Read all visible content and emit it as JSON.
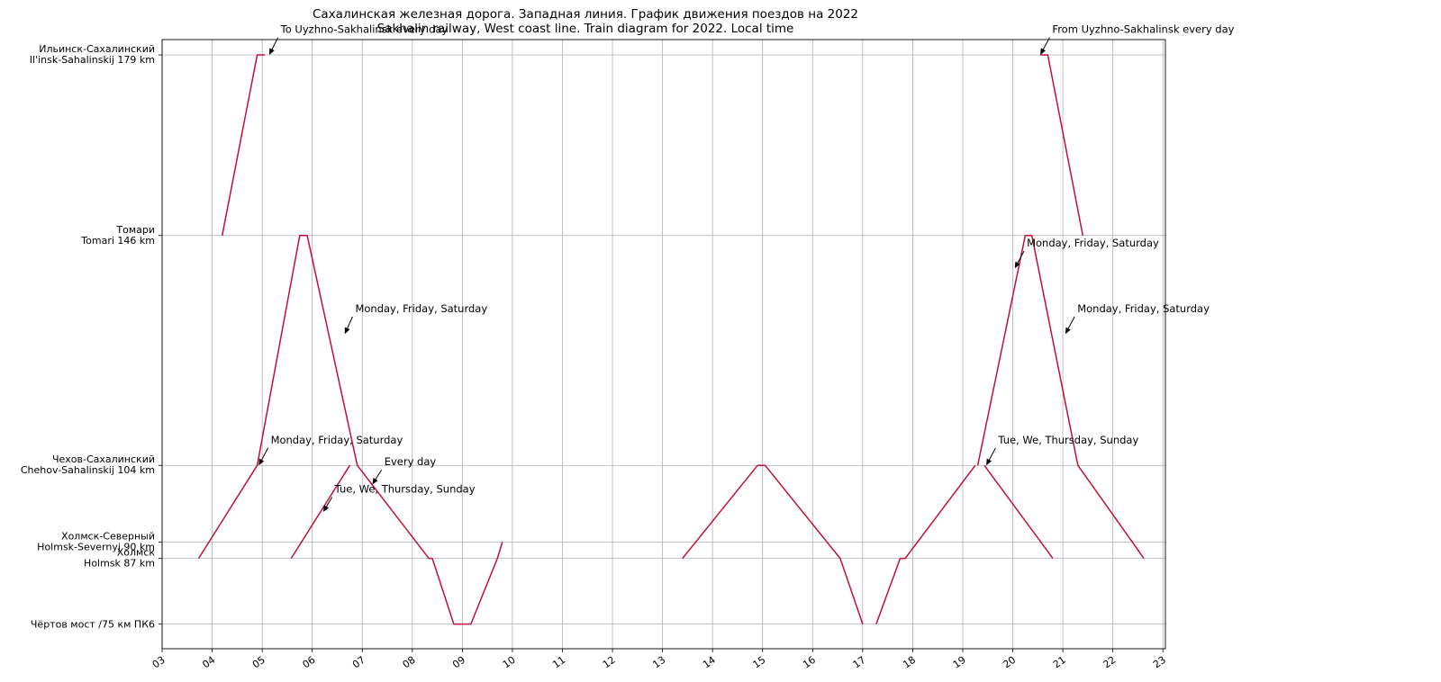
{
  "chart_data": {
    "type": "line",
    "title": "Сахалинская железная дорога. Западная линия. График движения поездов на 2022",
    "subtitle": "Sakhalin railway, West coast line. Train diagram for 2022. Local time",
    "xlabel": "",
    "ylabel": "",
    "grid": true,
    "xlim": [
      3.0,
      23.05
    ],
    "ylim": [
      70.5,
      181.8
    ],
    "x_ticks": [
      {
        "value": 3,
        "label": "03"
      },
      {
        "value": 4,
        "label": "04"
      },
      {
        "value": 5,
        "label": "05"
      },
      {
        "value": 6,
        "label": "06"
      },
      {
        "value": 7,
        "label": "07"
      },
      {
        "value": 8,
        "label": "08"
      },
      {
        "value": 9,
        "label": "09"
      },
      {
        "value": 10,
        "label": "10"
      },
      {
        "value": 11,
        "label": "11"
      },
      {
        "value": 12,
        "label": "12"
      },
      {
        "value": 13,
        "label": "13"
      },
      {
        "value": 14,
        "label": "14"
      },
      {
        "value": 15,
        "label": "15"
      },
      {
        "value": 16,
        "label": "16"
      },
      {
        "value": 17,
        "label": "17"
      },
      {
        "value": 18,
        "label": "18"
      },
      {
        "value": 19,
        "label": "19"
      },
      {
        "value": 20,
        "label": "20"
      },
      {
        "value": 21,
        "label": "21"
      },
      {
        "value": 22,
        "label": "22"
      },
      {
        "value": 23,
        "label": "23"
      }
    ],
    "stations": [
      {
        "km": 179,
        "name_ru": "Ильинск-Сахалинский",
        "name_en": "Il'insk-Sahalinskij 179 km"
      },
      {
        "km": 146,
        "name_ru": "Томари",
        "name_en": "Tomari 146 km"
      },
      {
        "km": 104,
        "name_ru": "Чехов-Сахалинский",
        "name_en": "Chehov-Sahalinskij 104 km"
      },
      {
        "km": 90,
        "name_ru": "Холмск-Северный",
        "name_en": "Holmsk-Severnyj 90 km"
      },
      {
        "km": 87,
        "name_ru": "Холмск",
        "name_en": "Holmsk 87 km"
      },
      {
        "km": 75,
        "name_ru": "Чёртов мост /75 км ПК6",
        "name_en": ""
      }
    ],
    "line_color": "#c0103a",
    "series": [
      {
        "points": [
          [
            3.73,
            87
          ],
          [
            4.9,
            104
          ],
          [
            5.75,
            146
          ],
          [
            5.9,
            146
          ],
          [
            6.9,
            104
          ],
          [
            8.33,
            87
          ],
          [
            8.4,
            87
          ],
          [
            8.83,
            75
          ],
          [
            9.17,
            75
          ],
          [
            9.7,
            87
          ],
          [
            9.8,
            90
          ]
        ]
      },
      {
        "points": [
          [
            5.58,
            87
          ],
          [
            6.75,
            104
          ]
        ]
      },
      {
        "points": [
          [
            4.2,
            146
          ],
          [
            4.9,
            179
          ],
          [
            5.05,
            179
          ]
        ]
      },
      {
        "points": [
          [
            13.4,
            87
          ],
          [
            14.9,
            104
          ],
          [
            15.05,
            104
          ],
          [
            16.55,
            87
          ],
          [
            17.0,
            75
          ]
        ]
      },
      {
        "points": [
          [
            17.27,
            75
          ],
          [
            17.75,
            87
          ],
          [
            17.85,
            87
          ],
          [
            19.25,
            104
          ]
        ]
      },
      {
        "points": [
          [
            19.3,
            104
          ],
          [
            20.25,
            146
          ],
          [
            20.38,
            146
          ],
          [
            21.3,
            104
          ],
          [
            22.62,
            87
          ]
        ]
      },
      {
        "points": [
          [
            19.43,
            104
          ],
          [
            20.8,
            87
          ]
        ]
      },
      {
        "points": [
          [
            20.55,
            179
          ],
          [
            20.7,
            179
          ],
          [
            21.4,
            146
          ]
        ]
      }
    ],
    "annotations": [
      {
        "text": "To Uyzhno-Sakhalinsk every day",
        "x": 5.14,
        "y": 179,
        "text_x": 5.37,
        "text_y": 183
      },
      {
        "text": "Monday, Friday, Saturday",
        "x": 6.65,
        "y": 128,
        "text_x": 6.86,
        "text_y": 132
      },
      {
        "text": "Monday, Friday, Saturday",
        "x": 4.93,
        "y": 104,
        "text_x": 5.17,
        "text_y": 108
      },
      {
        "text": "Every day",
        "x": 7.2,
        "y": 100.5,
        "text_x": 7.44,
        "text_y": 104
      },
      {
        "text": "Tue, We, Thursday, Sunday",
        "x": 6.22,
        "y": 95.5,
        "text_x": 6.45,
        "text_y": 99
      },
      {
        "text": "From Uyzhno-Sakhalinsk every day",
        "x": 20.55,
        "y": 179,
        "text_x": 20.79,
        "text_y": 183
      },
      {
        "text": "Monday, Friday, Saturday",
        "x": 20.04,
        "y": 140,
        "text_x": 20.28,
        "text_y": 144
      },
      {
        "text": "Monday, Friday, Saturday",
        "x": 21.05,
        "y": 128,
        "text_x": 21.29,
        "text_y": 132
      },
      {
        "text": "Tue, We, Thursday, Sunday",
        "x": 19.47,
        "y": 104,
        "text_x": 19.71,
        "text_y": 108
      }
    ]
  }
}
